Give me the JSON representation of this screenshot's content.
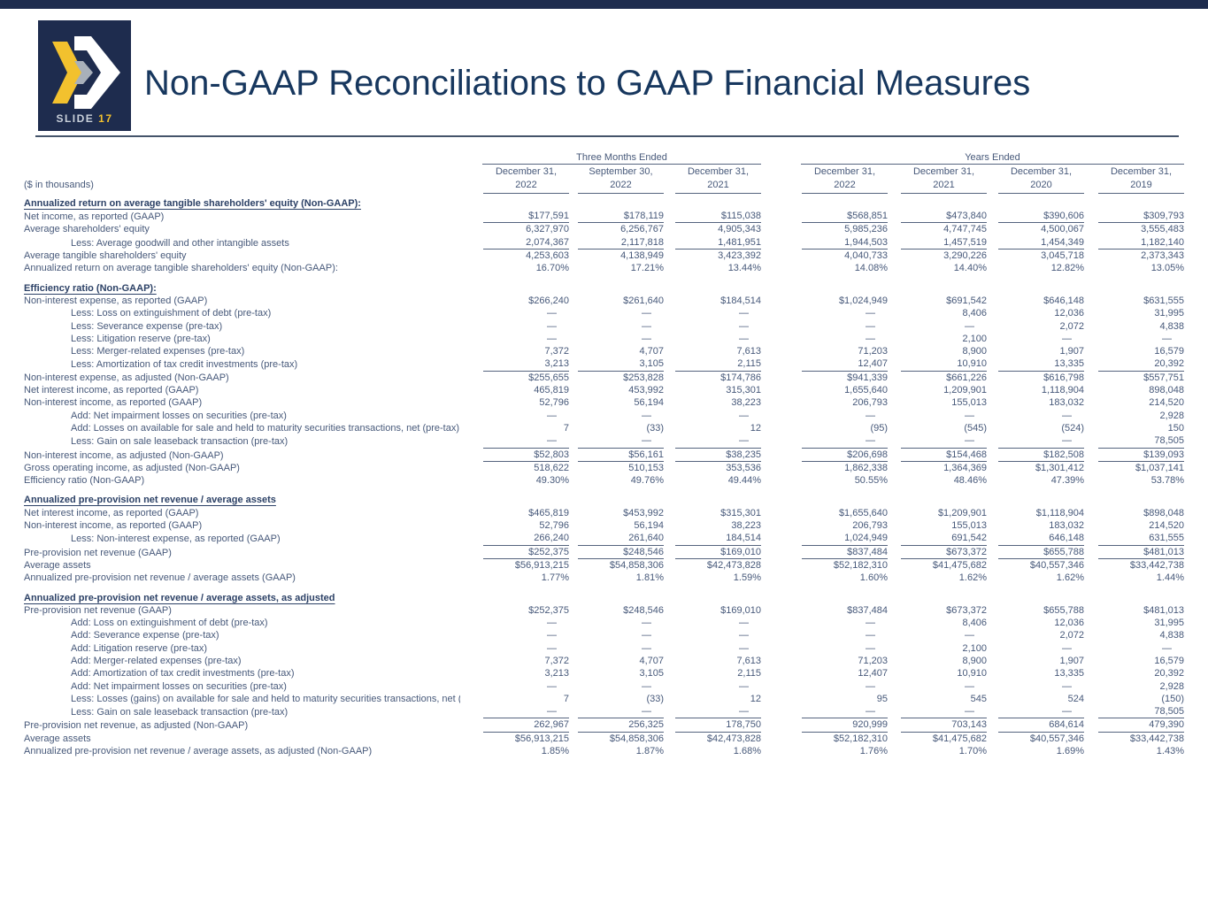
{
  "slide": {
    "badge_label": "SLIDE",
    "badge_number": "17",
    "title": "Non-GAAP Reconciliations to GAAP Financial Measures",
    "units_note": "($ in thousands)",
    "brand_colors": {
      "navy": "#1e2c4e",
      "yellow": "#f2c12e",
      "gray": "#a8b0ba",
      "text_blue": "#47597a"
    }
  },
  "table": {
    "group_headers": [
      {
        "label": "Three Months Ended"
      },
      {
        "label": "Years Ended"
      }
    ],
    "columns": [
      {
        "line1": "December 31,",
        "line2": "2022"
      },
      {
        "line1": "September 30,",
        "line2": "2022"
      },
      {
        "line1": "December 31,",
        "line2": "2021"
      },
      {
        "line1": "December 31,",
        "line2": "2022"
      },
      {
        "line1": "December 31,",
        "line2": "2021"
      },
      {
        "line1": "December 31,",
        "line2": "2020"
      },
      {
        "line1": "December 31,",
        "line2": "2019"
      }
    ],
    "sections": [
      {
        "heading": "Annualized return on average tangible shareholders' equity (Non-GAAP):",
        "rows": [
          {
            "label": "Net income, as reported (GAAP)",
            "indent": 0,
            "rule_below": true,
            "values": [
              "$177,591",
              "$178,119",
              "$115,038",
              "$568,851",
              "$473,840",
              "$390,606",
              "$309,793"
            ]
          },
          {
            "label": "Average shareholders' equity",
            "indent": 0,
            "rule_below": false,
            "values": [
              "6,327,970",
              "6,256,767",
              "4,905,343",
              "5,985,236",
              "4,747,745",
              "4,500,067",
              "3,555,483"
            ]
          },
          {
            "label": "Less: Average goodwill and other intangible assets",
            "indent": 1,
            "rule_below": true,
            "values": [
              "2,074,367",
              "2,117,818",
              "1,481,951",
              "1,944,503",
              "1,457,519",
              "1,454,349",
              "1,182,140"
            ]
          },
          {
            "label": "Average tangible shareholders' equity",
            "indent": 0,
            "rule_below": false,
            "values": [
              "4,253,603",
              "4,138,949",
              "3,423,392",
              "4,040,733",
              "3,290,226",
              "3,045,718",
              "2,373,343"
            ]
          },
          {
            "label": "Annualized return on average tangible shareholders' equity (Non-GAAP):",
            "indent": 0,
            "rule_below": false,
            "values": [
              "16.70%",
              "17.21%",
              "13.44%",
              "14.08%",
              "14.40%",
              "12.82%",
              "13.05%"
            ]
          }
        ]
      },
      {
        "heading": "Efficiency ratio (Non-GAAP):",
        "rows": [
          {
            "label": "Non-interest expense, as reported (GAAP)",
            "indent": 0,
            "rule_below": false,
            "values": [
              "$266,240",
              "$261,640",
              "$184,514",
              "$1,024,949",
              "$691,542",
              "$646,148",
              "$631,555"
            ]
          },
          {
            "label": "Less: Loss on extinguishment of debt (pre-tax)",
            "indent": 1,
            "rule_below": false,
            "values": [
              "—",
              "—",
              "—",
              "—",
              "8,406",
              "12,036",
              "31,995"
            ]
          },
          {
            "label": "Less: Severance expense (pre-tax)",
            "indent": 1,
            "rule_below": false,
            "values": [
              "—",
              "—",
              "—",
              "—",
              "—",
              "2,072",
              "4,838"
            ]
          },
          {
            "label": "Less: Litigation reserve (pre-tax)",
            "indent": 1,
            "rule_below": false,
            "values": [
              "—",
              "—",
              "—",
              "—",
              "2,100",
              "—",
              "—"
            ]
          },
          {
            "label": "Less: Merger-related expenses (pre-tax)",
            "indent": 1,
            "rule_below": false,
            "values": [
              "7,372",
              "4,707",
              "7,613",
              "71,203",
              "8,900",
              "1,907",
              "16,579"
            ]
          },
          {
            "label": "Less: Amortization of tax credit investments (pre-tax)",
            "indent": 1,
            "rule_below": true,
            "values": [
              "3,213",
              "3,105",
              "2,115",
              "12,407",
              "10,910",
              "13,335",
              "20,392"
            ]
          },
          {
            "label": "Non-interest expense, as adjusted (Non-GAAP)",
            "indent": 0,
            "rule_below": false,
            "values": [
              "$255,655",
              "$253,828",
              "$174,786",
              "$941,339",
              "$661,226",
              "$616,798",
              "$557,751"
            ]
          },
          {
            "label": "Net interest income, as reported (GAAP)",
            "indent": 0,
            "rule_below": false,
            "values": [
              "465,819",
              "453,992",
              "315,301",
              "1,655,640",
              "1,209,901",
              "1,118,904",
              "898,048"
            ]
          },
          {
            "label": "Non-interest income, as reported (GAAP)",
            "indent": 0,
            "rule_below": false,
            "values": [
              "52,796",
              "56,194",
              "38,223",
              "206,793",
              "155,013",
              "183,032",
              "214,520"
            ]
          },
          {
            "label": "Add: Net impairment losses on securities (pre-tax)",
            "indent": 1,
            "rule_below": false,
            "values": [
              "—",
              "—",
              "—",
              "—",
              "—",
              "—",
              "2,928"
            ]
          },
          {
            "label": "Add: Losses on available for sale and held to maturity securities transactions, net (pre-tax)",
            "indent": 1,
            "rule_below": false,
            "values": [
              "7",
              "(33)",
              "12",
              "(95)",
              "(545)",
              "(524)",
              "150"
            ]
          },
          {
            "label": "Less: Gain on sale leaseback transaction (pre-tax)",
            "indent": 1,
            "rule_below": true,
            "values": [
              "—",
              "—",
              "—",
              "—",
              "—",
              "—",
              "78,505"
            ]
          },
          {
            "label": "Non-interest income, as adjusted (Non-GAAP)",
            "indent": 0,
            "rule_below": true,
            "values": [
              "$52,803",
              "$56,161",
              "$38,235",
              "$206,698",
              "$154,468",
              "$182,508",
              "$139,093"
            ]
          },
          {
            "label": "Gross operating income, as adjusted (Non-GAAP)",
            "indent": 0,
            "rule_below": false,
            "values": [
              "518,622",
              "510,153",
              "353,536",
              "1,862,338",
              "1,364,369",
              "$1,301,412",
              "$1,037,141"
            ]
          },
          {
            "label": "Efficiency ratio (Non-GAAP)",
            "indent": 0,
            "rule_below": false,
            "values": [
              "49.30%",
              "49.76%",
              "49.44%",
              "50.55%",
              "48.46%",
              "47.39%",
              "53.78%"
            ]
          }
        ]
      },
      {
        "heading": "Annualized pre-provision net revenue / average assets",
        "rows": [
          {
            "label": "Net interest income, as reported (GAAP)",
            "indent": 0,
            "rule_below": false,
            "values": [
              "$465,819",
              "$453,992",
              "$315,301",
              "$1,655,640",
              "$1,209,901",
              "$1,118,904",
              "$898,048"
            ]
          },
          {
            "label": "Non-interest income, as reported (GAAP)",
            "indent": 0,
            "rule_below": false,
            "values": [
              "52,796",
              "56,194",
              "38,223",
              "206,793",
              "155,013",
              "183,032",
              "214,520"
            ]
          },
          {
            "label": "Less: Non-interest expense, as reported (GAAP)",
            "indent": 1,
            "rule_below": true,
            "values": [
              "266,240",
              "261,640",
              "184,514",
              "1,024,949",
              "691,542",
              "646,148",
              "631,555"
            ]
          },
          {
            "label": "Pre-provision net revenue (GAAP)",
            "indent": 0,
            "rule_below": true,
            "values": [
              "$252,375",
              "$248,546",
              "$169,010",
              "$837,484",
              "$673,372",
              "$655,788",
              "$481,013"
            ]
          },
          {
            "label": "Average assets",
            "indent": 0,
            "rule_below": false,
            "values": [
              "$56,913,215",
              "$54,858,306",
              "$42,473,828",
              "$52,182,310",
              "$41,475,682",
              "$40,557,346",
              "$33,442,738"
            ]
          },
          {
            "label": "Annualized pre-provision net revenue / average assets (GAAP)",
            "indent": 0,
            "rule_below": false,
            "values": [
              "1.77%",
              "1.81%",
              "1.59%",
              "1.60%",
              "1.62%",
              "1.62%",
              "1.44%"
            ]
          }
        ]
      },
      {
        "heading": "Annualized pre-provision net revenue / average assets, as adjusted",
        "rows": [
          {
            "label": "Pre-provision net revenue (GAAP)",
            "indent": 0,
            "rule_below": false,
            "values": [
              "$252,375",
              "$248,546",
              "$169,010",
              "$837,484",
              "$673,372",
              "$655,788",
              "$481,013"
            ]
          },
          {
            "label": "Add: Loss on extinguishment of debt (pre-tax)",
            "indent": 1,
            "rule_below": false,
            "values": [
              "—",
              "—",
              "—",
              "—",
              "8,406",
              "12,036",
              "31,995"
            ]
          },
          {
            "label": "Add: Severance expense (pre-tax)",
            "indent": 1,
            "rule_below": false,
            "values": [
              "—",
              "—",
              "—",
              "—",
              "—",
              "2,072",
              "4,838"
            ]
          },
          {
            "label": "Add: Litigation reserve (pre-tax)",
            "indent": 1,
            "rule_below": false,
            "values": [
              "—",
              "—",
              "—",
              "—",
              "2,100",
              "—",
              "—"
            ]
          },
          {
            "label": "Add: Merger-related expenses (pre-tax)",
            "indent": 1,
            "rule_below": false,
            "values": [
              "7,372",
              "4,707",
              "7,613",
              "71,203",
              "8,900",
              "1,907",
              "16,579"
            ]
          },
          {
            "label": "Add: Amortization of tax credit investments (pre-tax)",
            "indent": 1,
            "rule_below": false,
            "values": [
              "3,213",
              "3,105",
              "2,115",
              "12,407",
              "10,910",
              "13,335",
              "20,392"
            ]
          },
          {
            "label": "Add: Net impairment losses on securities (pre-tax)",
            "indent": 1,
            "rule_below": false,
            "values": [
              "—",
              "—",
              "—",
              "—",
              "—",
              "—",
              "2,928"
            ]
          },
          {
            "label": "Less: Losses (gains) on available for sale and held to maturity securities transactions, net (pre-tax)",
            "indent": 1,
            "rule_below": false,
            "values": [
              "7",
              "(33)",
              "12",
              "95",
              "545",
              "524",
              "(150)"
            ]
          },
          {
            "label": "Less: Gain on sale leaseback transaction (pre-tax)",
            "indent": 1,
            "rule_below": true,
            "values": [
              "—",
              "—",
              "—",
              "—",
              "—",
              "—",
              "78,505"
            ]
          },
          {
            "label": "Pre-provision net revenue, as adjusted (Non-GAAP)",
            "indent": 0,
            "rule_below": true,
            "values": [
              "262,967",
              "256,325",
              "178,750",
              "920,999",
              "703,143",
              "684,614",
              "479,390"
            ]
          },
          {
            "label": "Average assets",
            "indent": 0,
            "rule_below": false,
            "values": [
              "$56,913,215",
              "$54,858,306",
              "$42,473,828",
              "$52,182,310",
              "$41,475,682",
              "$40,557,346",
              "$33,442,738"
            ]
          },
          {
            "label": "Annualized pre-provision net revenue / average assets, as adjusted (Non-GAAP)",
            "indent": 0,
            "rule_below": false,
            "values": [
              "1.85%",
              "1.87%",
              "1.68%",
              "1.76%",
              "1.70%",
              "1.69%",
              "1.43%"
            ]
          }
        ]
      }
    ]
  }
}
